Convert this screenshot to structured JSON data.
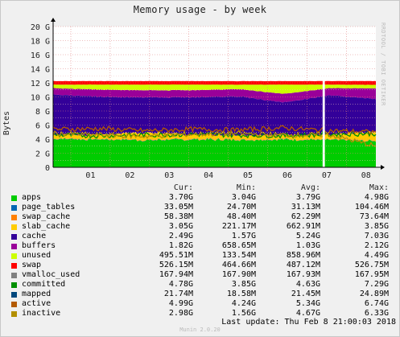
{
  "header": {
    "title": "Memory usage - by week",
    "watermark": "RRDTOOL / TOBI OETIKER"
  },
  "legend": {
    "headers": [
      "Cur:",
      "Min:",
      "Avg:",
      "Max:"
    ],
    "rows": [
      {
        "name": "apps",
        "color": "#00cc00",
        "cur": "3.70G",
        "min": "3.04G",
        "avg": "3.79G",
        "max": "4.98G"
      },
      {
        "name": "page_tables",
        "color": "#0066b3",
        "cur": "33.05M",
        "min": "24.70M",
        "avg": "31.13M",
        "max": "104.46M"
      },
      {
        "name": "swap_cache",
        "color": "#ff8000",
        "cur": "58.38M",
        "min": "48.40M",
        "avg": "62.29M",
        "max": "73.64M"
      },
      {
        "name": "slab_cache",
        "color": "#ffcc00",
        "cur": "3.05G",
        "min": "221.17M",
        "avg": "662.91M",
        "max": "3.85G"
      },
      {
        "name": "cache",
        "color": "#330099",
        "cur": "2.49G",
        "min": "1.57G",
        "avg": "5.24G",
        "max": "7.03G"
      },
      {
        "name": "buffers",
        "color": "#990099",
        "cur": "1.82G",
        "min": "658.65M",
        "avg": "1.03G",
        "max": "2.12G"
      },
      {
        "name": "unused",
        "color": "#ccff00",
        "cur": "495.51M",
        "min": "133.54M",
        "avg": "858.96M",
        "max": "4.49G"
      },
      {
        "name": "swap",
        "color": "#ff0000",
        "cur": "526.15M",
        "min": "464.66M",
        "avg": "487.12M",
        "max": "526.75M"
      },
      {
        "name": "vmalloc_used",
        "color": "#808080",
        "cur": "167.94M",
        "min": "167.90M",
        "avg": "167.93M",
        "max": "167.95M"
      },
      {
        "name": "committed",
        "color": "#008f00",
        "cur": "4.78G",
        "min": "3.85G",
        "avg": "4.63G",
        "max": "7.29G"
      },
      {
        "name": "mapped",
        "color": "#00487d",
        "cur": "21.74M",
        "min": "18.58M",
        "avg": "21.45M",
        "max": "24.89M"
      },
      {
        "name": "active",
        "color": "#b35a00",
        "cur": "4.99G",
        "min": "4.24G",
        "avg": "5.34G",
        "max": "6.74G"
      },
      {
        "name": "inactive",
        "color": "#b38f00",
        "cur": "2.98G",
        "min": "1.56G",
        "avg": "4.67G",
        "max": "6.33G"
      }
    ]
  },
  "footer": {
    "last_update": "Last update: Thu Feb  8 21:00:03 2018",
    "munin": "Munin 2.0.20"
  },
  "chart_data": {
    "type": "area",
    "title": "Memory usage - by week",
    "ylabel": "Bytes",
    "ylim": [
      0,
      20
    ],
    "y_unit": "G",
    "y_ticks": [
      "0",
      "2 G",
      "4 G",
      "6 G",
      "8 G",
      "10 G",
      "12 G",
      "14 G",
      "16 G",
      "18 G",
      "20 G"
    ],
    "x_ticks": [
      "01",
      "02",
      "03",
      "04",
      "05",
      "06",
      "07",
      "08"
    ],
    "grid": true,
    "stacked_series": [
      {
        "name": "apps",
        "color": "#00cc00",
        "values": [
          4.0,
          3.9,
          3.8,
          3.9,
          3.8,
          3.9,
          3.8,
          3.7
        ]
      },
      {
        "name": "page_tables",
        "color": "#0066b3",
        "values": [
          0.03,
          0.03,
          0.03,
          0.03,
          0.03,
          0.03,
          0.03,
          0.03
        ]
      },
      {
        "name": "swap_cache",
        "color": "#ff8000",
        "values": [
          0.06,
          0.06,
          0.06,
          0.06,
          0.06,
          0.06,
          0.06,
          0.06
        ]
      },
      {
        "name": "slab_cache",
        "color": "#ffcc00",
        "values": [
          0.5,
          0.6,
          1.0,
          0.6,
          0.6,
          0.6,
          0.6,
          1.2
        ]
      },
      {
        "name": "cache",
        "color": "#330099",
        "values": [
          5.6,
          5.3,
          4.9,
          5.2,
          5.4,
          4.5,
          5.6,
          4.6
        ]
      },
      {
        "name": "buffers",
        "color": "#990099",
        "values": [
          0.9,
          1.0,
          1.0,
          1.0,
          1.0,
          1.2,
          1.0,
          1.5
        ]
      },
      {
        "name": "unused",
        "color": "#ccff00",
        "values": [
          0.5,
          0.7,
          0.8,
          0.8,
          0.6,
          1.3,
          0.5,
          0.5
        ]
      },
      {
        "name": "swap",
        "color": "#ff0000",
        "values": [
          0.49,
          0.49,
          0.49,
          0.49,
          0.49,
          0.49,
          0.49,
          0.53
        ]
      }
    ],
    "line_series": [
      {
        "name": "committed",
        "color": "#008f00",
        "values": [
          4.6,
          4.5,
          4.6,
          4.7,
          4.6,
          4.5,
          4.7,
          4.8
        ]
      },
      {
        "name": "active",
        "color": "#b35a00",
        "values": [
          5.4,
          5.5,
          5.2,
          5.4,
          5.3,
          5.6,
          5.2,
          5.0
        ]
      },
      {
        "name": "inactive",
        "color": "#b38f00",
        "values": [
          4.8,
          4.6,
          4.4,
          4.7,
          4.8,
          4.6,
          4.6,
          3.0
        ]
      }
    ]
  }
}
